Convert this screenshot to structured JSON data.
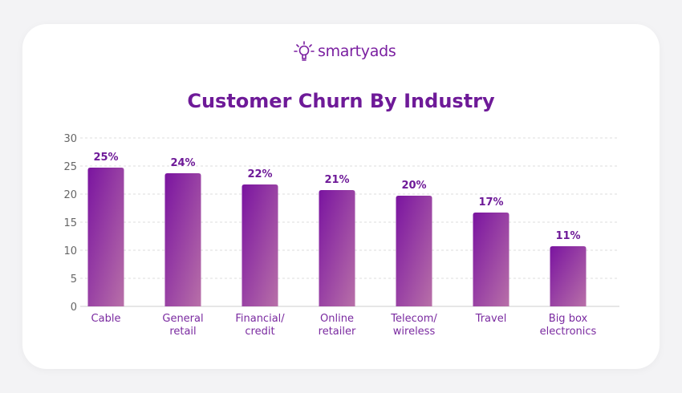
{
  "brand": {
    "name": "smartyads",
    "logo_icon": "lightbulb-icon"
  },
  "chart_data": {
    "type": "bar",
    "title": "Customer Churn By Industry",
    "categories": [
      [
        "Cable"
      ],
      [
        "General",
        "retail"
      ],
      [
        "Financial/",
        "credit"
      ],
      [
        "Online",
        "retailer"
      ],
      [
        "Telecom/",
        "wireless"
      ],
      [
        "Travel"
      ],
      [
        "Big box",
        "electronics"
      ]
    ],
    "values": [
      25,
      24,
      22,
      21,
      20,
      17,
      11
    ],
    "data_labels": [
      "25%",
      "24%",
      "22%",
      "21%",
      "20%",
      "17%",
      "11%"
    ],
    "yticks": [
      0,
      5,
      10,
      15,
      20,
      25,
      30
    ],
    "ylim": [
      0,
      30
    ],
    "grid": true,
    "colors": {
      "bar_start": "#7a14a0",
      "bar_end": "#b870a8",
      "title": "#6e1a98"
    }
  }
}
